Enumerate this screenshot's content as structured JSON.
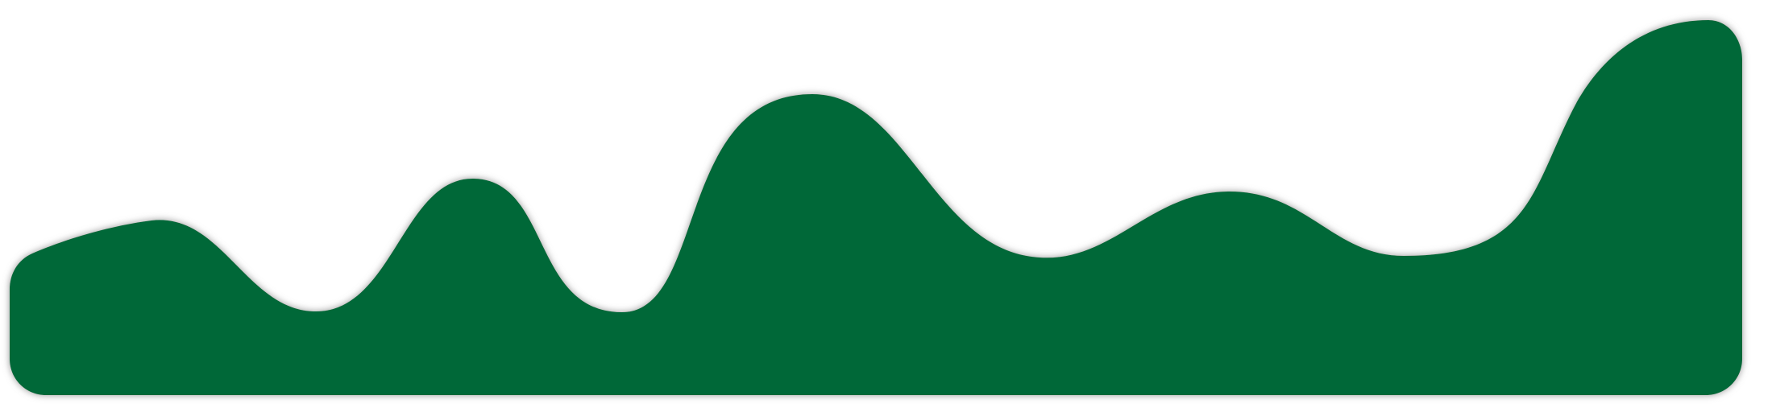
{
  "graphic": {
    "fill_color": "#016838",
    "shadow_color": "#8a8a8a",
    "background_color": "#ffffff",
    "shape": "wave-banner"
  }
}
